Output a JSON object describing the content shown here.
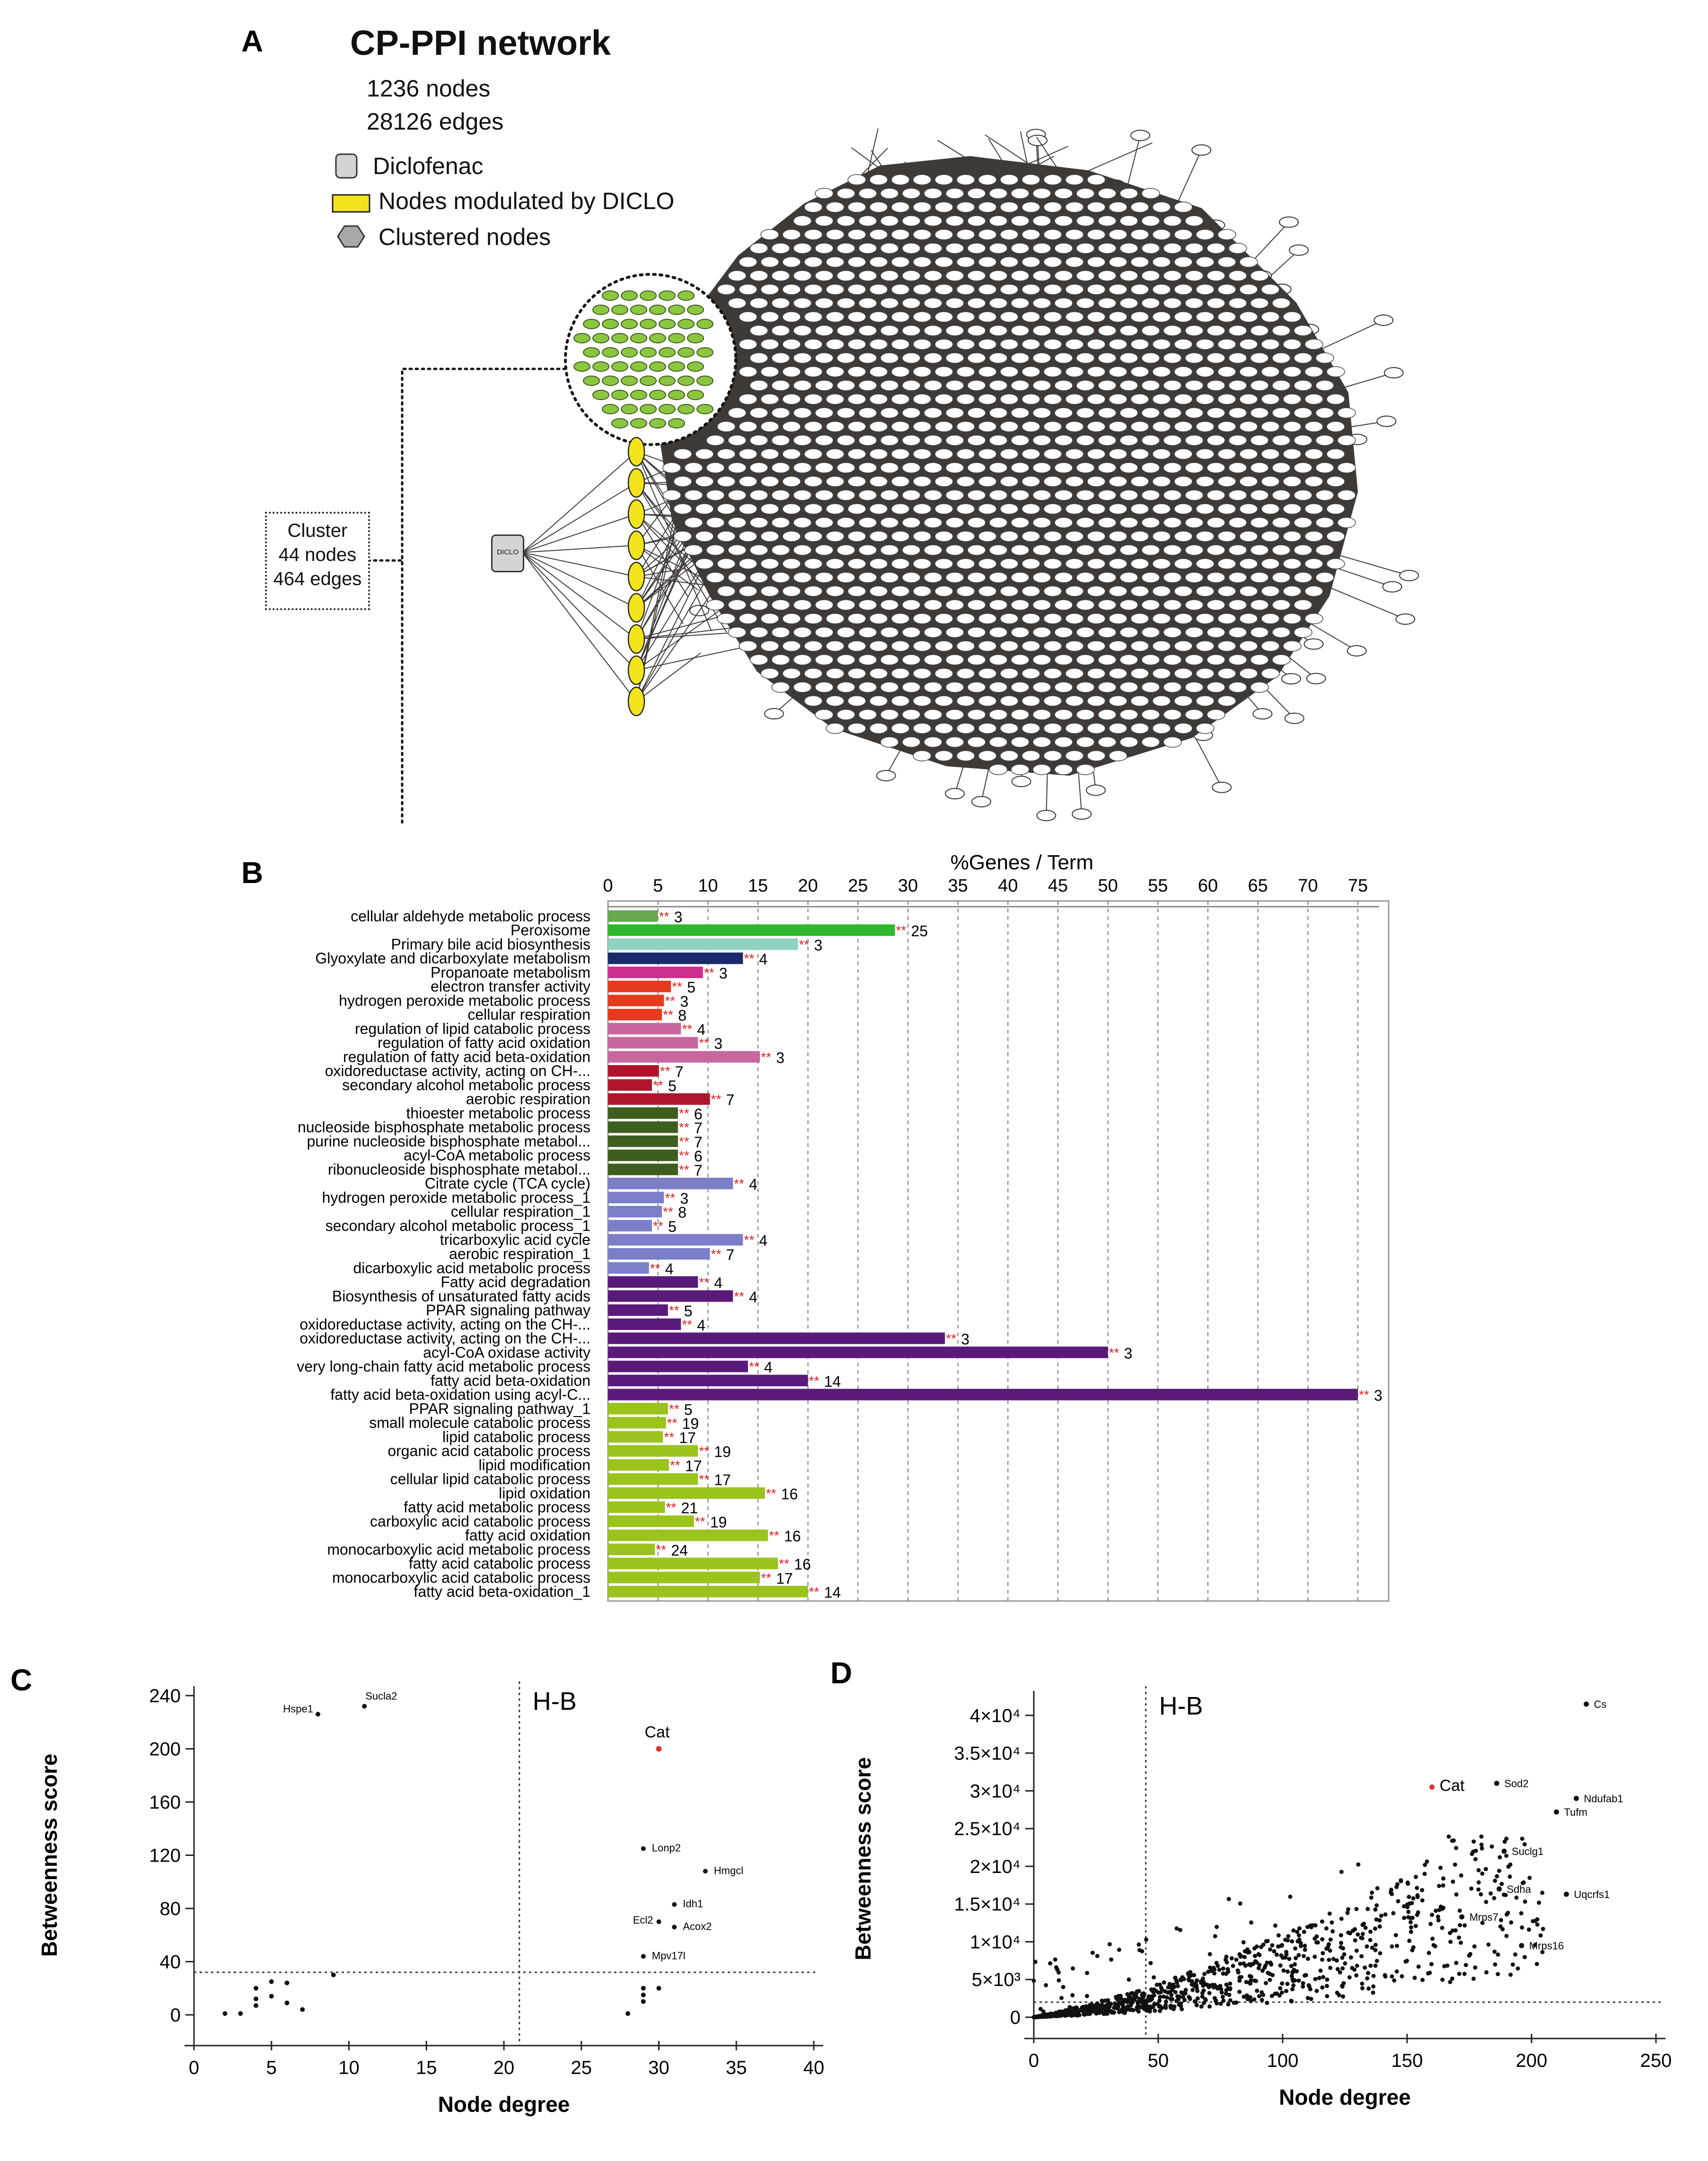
{
  "panels": {
    "A": {
      "letter": "A",
      "title": "CP-PPI network",
      "nodes_text": "1236 nodes",
      "edges_text": "28126 edges",
      "legend": [
        {
          "label": "Diclofenac",
          "shape": "rounded-square",
          "color": "#d4d4d4"
        },
        {
          "label": "Nodes modulated by DICLO",
          "shape": "rectangle",
          "color": "#f2e41c"
        },
        {
          "label": "Clustered nodes",
          "shape": "hexagon",
          "color": "#a8a8a8"
        }
      ],
      "cluster_box": {
        "line1": "Cluster",
        "line2": "44 nodes",
        "line3": "464 edges"
      },
      "diclo_label": "DICLO",
      "colors": {
        "network": "#3e3a38",
        "node": "#ffffff",
        "cluster_node": "#8cc63f",
        "diclo_node": "#f2e41c"
      }
    },
    "B": {
      "letter": "B",
      "chart_data": {
        "type": "bar",
        "orientation": "horizontal",
        "title": "%Genes / Term",
        "xlim": [
          0,
          80
        ],
        "xticks": [
          0,
          5,
          10,
          15,
          20,
          25,
          30,
          35,
          40,
          45,
          50,
          55,
          60,
          65,
          70,
          75
        ],
        "significance_marker": "**",
        "bars": [
          {
            "term": "cellular aldehyde metabolic process",
            "value": 5.0,
            "label": "3",
            "color": "#6aa84f"
          },
          {
            "term": "Peroxisome",
            "value": 28.7,
            "label": "25",
            "color": "#2db82d"
          },
          {
            "term": "Primary bile acid biosynthesis",
            "value": 19.0,
            "label": "3",
            "color": "#8fd1c3"
          },
          {
            "term": "Glyoxylate and dicarboxylate metabolism",
            "value": 13.5,
            "label": "4",
            "color": "#1b2a6b"
          },
          {
            "term": "Propanoate metabolism",
            "value": 9.5,
            "label": "3",
            "color": "#cc2f8f"
          },
          {
            "term": "electron transfer activity",
            "value": 6.3,
            "label": "5",
            "color": "#e53a1e"
          },
          {
            "term": "hydrogen peroxide metabolic process",
            "value": 5.6,
            "label": "3",
            "color": "#e53a1e"
          },
          {
            "term": "cellular respiration",
            "value": 5.4,
            "label": "8",
            "color": "#e53a1e"
          },
          {
            "term": "regulation of lipid catabolic process",
            "value": 7.3,
            "label": "4",
            "color": "#c8679f"
          },
          {
            "term": "regulation of fatty acid oxidation",
            "value": 9.0,
            "label": "3",
            "color": "#c8679f"
          },
          {
            "term": "regulation of fatty acid beta-oxidation",
            "value": 15.2,
            "label": "3",
            "color": "#c8679f"
          },
          {
            "term": "oxidoreductase activity, acting on CH-...",
            "value": 5.1,
            "label": "7",
            "color": "#b0142c"
          },
          {
            "term": "secondary alcohol metabolic process",
            "value": 4.4,
            "label": "5",
            "color": "#b0142c"
          },
          {
            "term": "aerobic respiration",
            "value": 10.2,
            "label": "7",
            "color": "#b0142c"
          },
          {
            "term": "thioester metabolic process",
            "value": 7.0,
            "label": "6",
            "color": "#3d5e1e"
          },
          {
            "term": "nucleoside bisphosphate metabolic process",
            "value": 7.0,
            "label": "7",
            "color": "#3d5e1e"
          },
          {
            "term": "purine nucleoside bisphosphate metabol...",
            "value": 7.0,
            "label": "7",
            "color": "#3d5e1e"
          },
          {
            "term": "acyl-CoA metabolic process",
            "value": 7.0,
            "label": "6",
            "color": "#3d5e1e"
          },
          {
            "term": "ribonucleoside bisphosphate metabol...",
            "value": 7.0,
            "label": "7",
            "color": "#3d5e1e"
          },
          {
            "term": "Citrate cycle (TCA cycle)",
            "value": 12.5,
            "label": "4",
            "color": "#7a7fc8"
          },
          {
            "term": "hydrogen peroxide metabolic process_1",
            "value": 5.6,
            "label": "3",
            "color": "#7a7fc8"
          },
          {
            "term": "cellular respiration_1",
            "value": 5.4,
            "label": "8",
            "color": "#7a7fc8"
          },
          {
            "term": "secondary alcohol metabolic process_1",
            "value": 4.4,
            "label": "5",
            "color": "#7a7fc8"
          },
          {
            "term": "tricarboxylic acid cycle",
            "value": 13.5,
            "label": "4",
            "color": "#7a7fc8"
          },
          {
            "term": "aerobic respiration_1",
            "value": 10.2,
            "label": "7",
            "color": "#7a7fc8"
          },
          {
            "term": "dicarboxylic acid metabolic process",
            "value": 4.1,
            "label": "4",
            "color": "#7a7fc8"
          },
          {
            "term": "Fatty acid degradation",
            "value": 9.0,
            "label": "4",
            "color": "#5a1a7a"
          },
          {
            "term": "Biosynthesis of unsaturated fatty acids",
            "value": 12.5,
            "label": "4",
            "color": "#5a1a7a"
          },
          {
            "term": "PPAR signaling pathway",
            "value": 6.0,
            "label": "5",
            "color": "#5a1a7a"
          },
          {
            "term": "oxidoreductase activity, acting on the CH-...",
            "value": 7.3,
            "label": "4",
            "color": "#5a1a7a"
          },
          {
            "term": "oxidoreductase activity, acting on the CH-...",
            "value": 33.7,
            "label": "3",
            "color": "#5a1a7a"
          },
          {
            "term": "acyl-CoA oxidase activity",
            "value": 50.0,
            "label": "3",
            "color": "#5a1a7a"
          },
          {
            "term": "very long-chain fatty acid metabolic process",
            "value": 14.0,
            "label": "4",
            "color": "#5a1a7a"
          },
          {
            "term": "fatty acid beta-oxidation",
            "value": 20.0,
            "label": "14",
            "color": "#5a1a7a"
          },
          {
            "term": "fatty acid beta-oxidation using acyl-C...",
            "value": 75.0,
            "label": "3",
            "color": "#5a1a7a"
          },
          {
            "term": "PPAR signaling pathway_1",
            "value": 6.0,
            "label": "5",
            "color": "#9ac31c"
          },
          {
            "term": "small molecule catabolic process",
            "value": 5.8,
            "label": "19",
            "color": "#9ac31c"
          },
          {
            "term": "lipid catabolic process",
            "value": 5.5,
            "label": "17",
            "color": "#9ac31c"
          },
          {
            "term": "organic acid catabolic process",
            "value": 9.0,
            "label": "19",
            "color": "#9ac31c"
          },
          {
            "term": "lipid modification",
            "value": 6.1,
            "label": "17",
            "color": "#9ac31c"
          },
          {
            "term": "cellular lipid catabolic process",
            "value": 9.0,
            "label": "17",
            "color": "#9ac31c"
          },
          {
            "term": "lipid oxidation",
            "value": 15.7,
            "label": "16",
            "color": "#9ac31c"
          },
          {
            "term": "fatty acid metabolic process",
            "value": 5.7,
            "label": "21",
            "color": "#9ac31c"
          },
          {
            "term": "carboxylic acid catabolic process",
            "value": 8.6,
            "label": "19",
            "color": "#9ac31c"
          },
          {
            "term": "fatty acid oxidation",
            "value": 16.0,
            "label": "16",
            "color": "#9ac31c"
          },
          {
            "term": "monocarboxylic acid metabolic process",
            "value": 4.7,
            "label": "24",
            "color": "#9ac31c"
          },
          {
            "term": "fatty acid catabolic process",
            "value": 17.0,
            "label": "16",
            "color": "#9ac31c"
          },
          {
            "term": "monocarboxylic acid catabolic process",
            "value": 15.2,
            "label": "17",
            "color": "#9ac31c"
          },
          {
            "term": "fatty acid beta-oxidation_1",
            "value": 20.0,
            "label": "14",
            "color": "#9ac31c"
          }
        ]
      }
    },
    "C": {
      "letter": "C",
      "chart_data": {
        "type": "scatter",
        "xlabel": "Node degree",
        "ylabel": "Betweenness score",
        "xlim": [
          0,
          40
        ],
        "ylim": [
          0,
          240
        ],
        "xticks": [
          0,
          5,
          10,
          15,
          20,
          25,
          30,
          35,
          40
        ],
        "yticks": [
          0,
          40,
          80,
          120,
          160,
          200,
          240
        ],
        "threshold_x": 21,
        "threshold_y": 32,
        "quadrant_label": "H-B",
        "labeled_points": [
          {
            "name": "Hspe1",
            "x": 8,
            "y": 226
          },
          {
            "name": "Sucla2",
            "x": 11,
            "y": 232
          },
          {
            "name": "Cat",
            "x": 30,
            "y": 200,
            "highlight": true
          },
          {
            "name": "Lonp2",
            "x": 29,
            "y": 125
          },
          {
            "name": "Hmgcl",
            "x": 33,
            "y": 108
          },
          {
            "name": "Idh1",
            "x": 31,
            "y": 83
          },
          {
            "name": "Ecl2",
            "x": 30,
            "y": 70
          },
          {
            "name": "Acox2",
            "x": 31,
            "y": 66
          },
          {
            "name": "Mpv17l",
            "x": 29,
            "y": 44
          }
        ],
        "points": [
          {
            "x": 2,
            "y": 1
          },
          {
            "x": 3,
            "y": 1
          },
          {
            "x": 4,
            "y": 7
          },
          {
            "x": 4,
            "y": 12
          },
          {
            "x": 4,
            "y": 20
          },
          {
            "x": 5,
            "y": 14
          },
          {
            "x": 5,
            "y": 25
          },
          {
            "x": 6,
            "y": 9
          },
          {
            "x": 6,
            "y": 24
          },
          {
            "x": 7,
            "y": 4
          },
          {
            "x": 9,
            "y": 30
          },
          {
            "x": 28,
            "y": 1
          },
          {
            "x": 29,
            "y": 10
          },
          {
            "x": 29,
            "y": 15
          },
          {
            "x": 29,
            "y": 20
          },
          {
            "x": 30,
            "y": 20
          }
        ],
        "highlight_color": "#e03030"
      }
    },
    "D": {
      "letter": "D",
      "chart_data": {
        "type": "scatter",
        "xlabel": "Node degree",
        "ylabel": "Betweenness score",
        "xlim": [
          0,
          250
        ],
        "ylim": [
          0,
          42000
        ],
        "xticks": [
          0,
          50,
          100,
          150,
          200,
          250
        ],
        "yticks": [
          {
            "value": 0,
            "label": "0"
          },
          {
            "value": 5000,
            "label": "5×10³"
          },
          {
            "value": 10000,
            "label": "1×10⁴"
          },
          {
            "value": 15000,
            "label": "1.5×10⁴"
          },
          {
            "value": 20000,
            "label": "2×10⁴"
          },
          {
            "value": 25000,
            "label": "2.5×10⁴"
          },
          {
            "value": 30000,
            "label": "3×10⁴"
          },
          {
            "value": 35000,
            "label": "3.5×10⁴"
          },
          {
            "value": 40000,
            "label": "4×10⁴"
          }
        ],
        "threshold_x": 45,
        "threshold_y": 2000,
        "quadrant_label": "H-B",
        "labeled_points": [
          {
            "name": "Cs",
            "x": 222,
            "y": 41500
          },
          {
            "name": "Cat",
            "x": 160,
            "y": 30500,
            "highlight": true
          },
          {
            "name": "Sod2",
            "x": 186,
            "y": 31000
          },
          {
            "name": "Ndufab1",
            "x": 218,
            "y": 29000
          },
          {
            "name": "Tufm",
            "x": 210,
            "y": 27200
          },
          {
            "name": "Suclg1",
            "x": 189,
            "y": 22000
          },
          {
            "name": "Sdha",
            "x": 187,
            "y": 17000
          },
          {
            "name": "Uqcrfs1",
            "x": 214,
            "y": 16300
          },
          {
            "name": "Mrps7",
            "x": 172,
            "y": 13300
          },
          {
            "name": "Mrps16",
            "x": 196,
            "y": 9500
          }
        ],
        "scatter_cloud": "approx. 1200 nodes, betweenness rising with degree",
        "highlight_color": "#e03030"
      }
    }
  }
}
